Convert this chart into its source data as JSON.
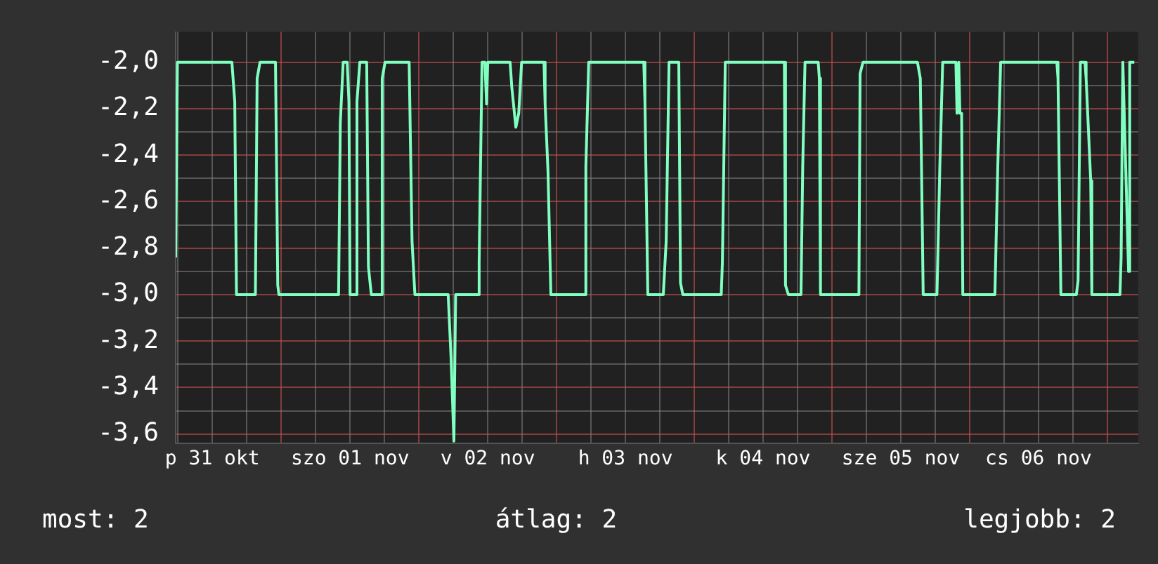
{
  "chart_data": {
    "type": "line",
    "color": "#80ffc0",
    "marker": "none",
    "line_style": "solid",
    "grid": true,
    "legend": false,
    "x": [
      "--10-31T05:36",
      "--10-31T05:54",
      "--10-31T15:24",
      "--10-31T15:54",
      "--10-31T16:12",
      "--10-31T19:30",
      "--10-31T19:48",
      "--10-31T20:18",
      "--10-31T23:00",
      "--10-31T23:24",
      "--10-31T23:36",
      "--11-01T10:00",
      "--11-01T10:18",
      "--11-01T10:48",
      "--11-01T11:30",
      "--11-01T11:48",
      "--11-01T12:00",
      "--11-01T13:00",
      "--11-01T13:12",
      "--11-01T13:42",
      "--11-01T14:54",
      "--11-01T15:12",
      "--11-01T15:42",
      "--11-01T17:24",
      "--11-01T17:36",
      "--11-01T18:06",
      "--11-01T22:18",
      "--11-01T22:48",
      "--11-01T23:18",
      "--11-02T05:06",
      "--11-02T05:36",
      "--11-02T06:06",
      "--11-02T06:24",
      "--11-02T10:18",
      "--11-02T10:30",
      "--11-02T11:00",
      "--11-02T11:30",
      "--11-02T11:48",
      "--11-02T12:00",
      "--11-02T15:54",
      "--11-02T16:12",
      "--11-02T16:54",
      "--11-02T17:24",
      "--11-02T17:54",
      "--11-02T21:48",
      "--11-02T22:00",
      "--11-02T22:30",
      "--11-02T23:00",
      "--11-03T04:54",
      "--11-03T05:06",
      "--11-03T05:36",
      "--11-03T15:12",
      "--11-03T15:24",
      "--11-03T15:54",
      "--11-03T18:36",
      "--11-03T19:06",
      "--11-03T19:36",
      "--11-03T21:18",
      "--11-03T21:36",
      "--11-03T22:00",
      "--11-04T04:42",
      "--11-04T04:54",
      "--11-04T05:24",
      "--11-04T15:42",
      "--11-04T15:54",
      "--11-04T16:24",
      "--11-04T18:36",
      "--11-04T18:54",
      "--11-04T19:18",
      "--11-04T21:36",
      "--11-04T21:48",
      "--11-04T22:00",
      "--11-05T04:42",
      "--11-05T04:54",
      "--11-05T05:24",
      "--11-05T14:54",
      "--11-05T15:24",
      "--11-05T15:54",
      "--11-05T18:18",
      "--11-05T18:48",
      "--11-05T19:18",
      "--11-05T21:36",
      "--11-05T21:48",
      "--11-05T22:06",
      "--11-05T22:18",
      "--11-05T22:36",
      "--11-05T22:48",
      "--11-06T04:24",
      "--11-06T04:54",
      "--11-06T05:24",
      "--11-06T15:12",
      "--11-06T15:24",
      "--11-06T15:54",
      "--11-06T18:36",
      "--11-06T18:54",
      "--11-06T19:18",
      "--11-06T20:06",
      "--11-06T20:18",
      "--11-06T21:06",
      "--11-06T21:18",
      "--11-07T02:12",
      "--11-07T02:24",
      "--11-07T02:42",
      "--11-07T03:42",
      "--11-07T03:54",
      "--11-07T04:42"
    ],
    "values": [
      -2.84,
      -2.0,
      -2.0,
      -2.17,
      -3.0,
      -3.0,
      -2.07,
      -2.0,
      -2.0,
      -2.96,
      -3.0,
      -3.0,
      -2.26,
      -2.0,
      -2.0,
      -2.17,
      -3.0,
      -3.0,
      -2.17,
      -2.0,
      -2.0,
      -2.88,
      -3.0,
      -3.0,
      -2.07,
      -2.0,
      -2.0,
      -2.77,
      -3.0,
      -3.0,
      -3.27,
      -3.63,
      -3.0,
      -3.0,
      -2.86,
      -2.0,
      -2.0,
      -2.18,
      -2.0,
      -2.0,
      -2.11,
      -2.28,
      -2.22,
      -2.0,
      -2.0,
      -2.18,
      -2.47,
      -3.0,
      -3.0,
      -2.45,
      -2.0,
      -2.0,
      -2.17,
      -3.0,
      -3.0,
      -2.77,
      -2.0,
      -2.0,
      -2.95,
      -3.0,
      -3.0,
      -2.86,
      -2.0,
      -2.0,
      -2.96,
      -3.0,
      -3.0,
      -2.45,
      -2.0,
      -2.0,
      -2.07,
      -3.0,
      -3.0,
      -2.05,
      -2.0,
      -2.0,
      -2.07,
      -3.0,
      -3.0,
      -2.45,
      -2.0,
      -2.0,
      -2.22,
      -2.0,
      -2.22,
      -2.22,
      -3.0,
      -3.0,
      -2.45,
      -2.0,
      -2.0,
      -2.07,
      -3.0,
      -3.0,
      -2.94,
      -2.0,
      -2.0,
      -2.07,
      -2.51,
      -3.0,
      -3.0,
      -2.84,
      -2.0,
      -2.9,
      -2.0,
      -2.0
    ],
    "xlim": [
      "--10-31T05:36",
      "--11-07T05:24"
    ],
    "xticks": [
      {
        "value": "--10-31T06:00",
        "label": null
      },
      {
        "value": "--10-31T12:00",
        "label": "p 31 okt"
      },
      {
        "value": "--10-31T18:00",
        "label": null
      },
      {
        "value": "--11-01T00:00",
        "label": null
      },
      {
        "value": "--11-01T06:00",
        "label": null
      },
      {
        "value": "--11-01T12:00",
        "label": "szo 01 nov"
      },
      {
        "value": "--11-01T18:00",
        "label": null
      },
      {
        "value": "--11-02T00:00",
        "label": null
      },
      {
        "value": "--11-02T06:00",
        "label": null
      },
      {
        "value": "--11-02T12:00",
        "label": "v 02 nov"
      },
      {
        "value": "--11-02T18:00",
        "label": null
      },
      {
        "value": "--11-03T00:00",
        "label": null
      },
      {
        "value": "--11-03T06:00",
        "label": null
      },
      {
        "value": "--11-03T12:00",
        "label": "h 03 nov"
      },
      {
        "value": "--11-03T18:00",
        "label": null
      },
      {
        "value": "--11-04T00:00",
        "label": null
      },
      {
        "value": "--11-04T06:00",
        "label": null
      },
      {
        "value": "--11-04T12:00",
        "label": "k 04 nov"
      },
      {
        "value": "--11-04T18:00",
        "label": null
      },
      {
        "value": "--11-05T00:00",
        "label": null
      },
      {
        "value": "--11-05T06:00",
        "label": null
      },
      {
        "value": "--11-05T12:00",
        "label": "sze 05 nov"
      },
      {
        "value": "--11-05T18:00",
        "label": null
      },
      {
        "value": "--11-06T00:00",
        "label": null
      },
      {
        "value": "--11-06T06:00",
        "label": null
      },
      {
        "value": "--11-06T12:00",
        "label": "cs 06 nov"
      },
      {
        "value": "--11-06T18:00",
        "label": null
      },
      {
        "value": "--11-07T00:00",
        "label": null
      }
    ],
    "ylim": [
      -3.64,
      -1.87
    ],
    "yticks": [
      {
        "value": -3.6,
        "label": "-3,6"
      },
      {
        "value": -3.5,
        "label": null
      },
      {
        "value": -3.4,
        "label": "-3,4"
      },
      {
        "value": -3.3,
        "label": null
      },
      {
        "value": -3.2,
        "label": "-3,2"
      },
      {
        "value": -3.1,
        "label": null
      },
      {
        "value": -3.0,
        "label": "-3,0"
      },
      {
        "value": -2.9,
        "label": null
      },
      {
        "value": -2.8,
        "label": "-2,8"
      },
      {
        "value": -2.7,
        "label": null
      },
      {
        "value": -2.6,
        "label": "-2,6"
      },
      {
        "value": -2.5,
        "label": null
      },
      {
        "value": -2.4,
        "label": "-2,4"
      },
      {
        "value": -2.3,
        "label": null
      },
      {
        "value": -2.2,
        "label": "-2,2"
      },
      {
        "value": -2.1,
        "label": null
      },
      {
        "value": -2.0,
        "label": "-2,0"
      }
    ],
    "annotations": [
      "most: 2",
      "átlag: 2",
      "legjobb: 2"
    ]
  }
}
